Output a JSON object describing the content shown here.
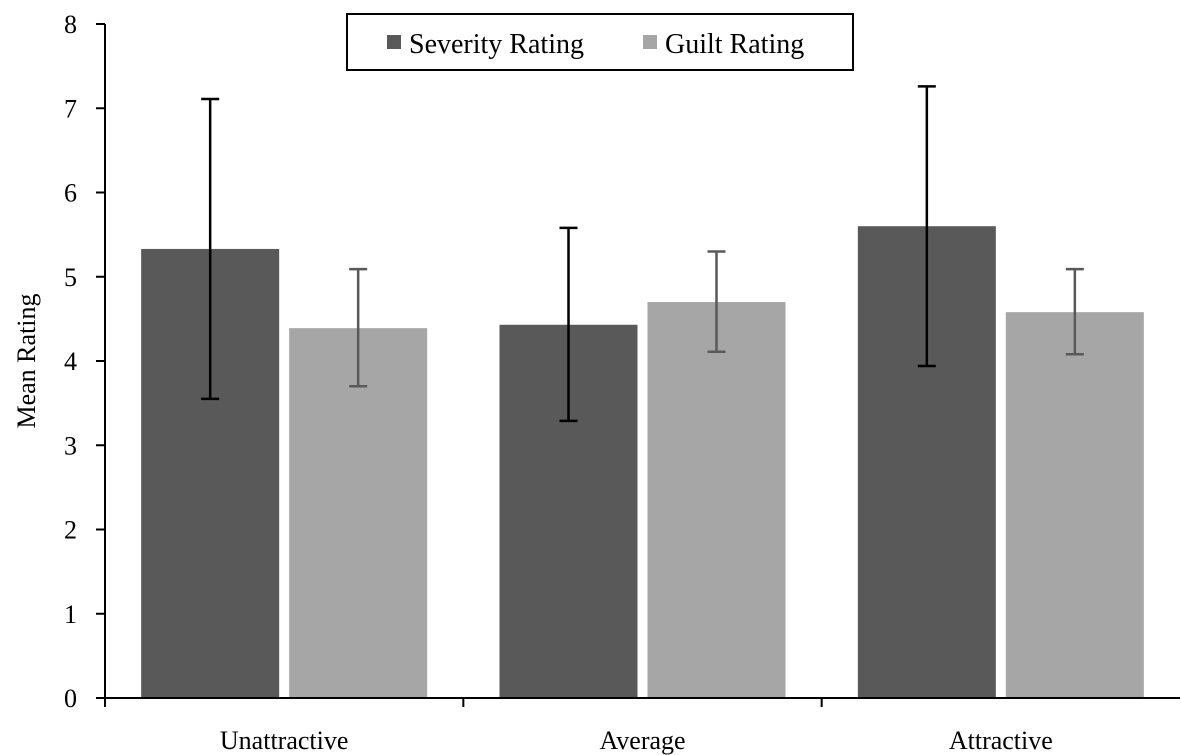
{
  "chart_data": {
    "type": "bar",
    "title": "",
    "xlabel": "",
    "ylabel": "Mean Rating",
    "ylim": [
      0,
      8
    ],
    "yticks": [
      0,
      1,
      2,
      3,
      4,
      5,
      6,
      7,
      8
    ],
    "categories": [
      "Unattractive",
      "Average",
      "Attractive"
    ],
    "series": [
      {
        "name": "Severity Rating",
        "color": "#595959",
        "error_color": "#000000",
        "values": [
          5.33,
          4.43,
          5.6
        ],
        "error_low": [
          3.55,
          3.29,
          3.94
        ],
        "error_high": [
          7.11,
          5.58,
          7.26
        ]
      },
      {
        "name": "Guilt Rating",
        "color": "#a6a6a6",
        "error_color": "#595959",
        "values": [
          4.39,
          4.7,
          4.58
        ],
        "error_low": [
          3.7,
          4.11,
          4.08
        ],
        "error_high": [
          5.09,
          5.3,
          5.09
        ]
      }
    ],
    "legend": {
      "position": "top-center",
      "border": true
    },
    "grid": false
  }
}
